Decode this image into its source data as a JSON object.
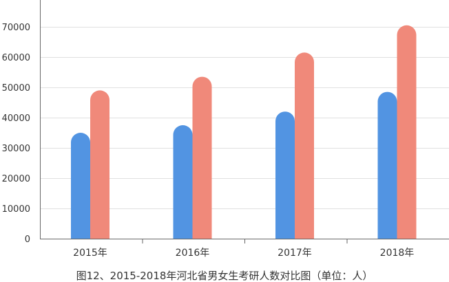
{
  "caption": "图12、2015-2018年河北省男女生考研人数对比图（单位：人）",
  "chart_data": {
    "type": "bar",
    "categories": [
      "2015年",
      "2016年",
      "2017年",
      "2018年"
    ],
    "series": [
      {
        "values": [
          35000,
          37500,
          42000,
          48500
        ],
        "color": "#5294e2"
      },
      {
        "values": [
          49000,
          53500,
          61500,
          70500
        ],
        "color": "#f0897a"
      }
    ],
    "ylim": [
      0,
      80000
    ],
    "yticks": [
      "0",
      "10000",
      "20000",
      "30000",
      "40000",
      "50000",
      "60000",
      "70000"
    ],
    "grid": true,
    "bar_shape": "rounded-top"
  }
}
